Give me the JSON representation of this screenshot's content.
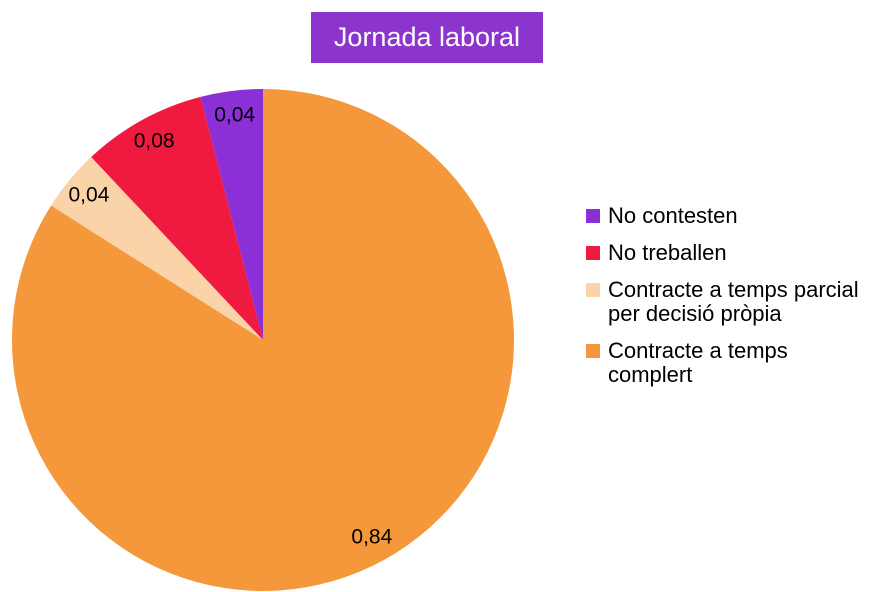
{
  "chart_data": {
    "type": "pie",
    "title": "Jornada laboral",
    "categories": [
      "Contracte a temps complert",
      "Contracte a temps parcial per decisió pròpia",
      "No treballen",
      "No contesten"
    ],
    "values": [
      0.84,
      0.04,
      0.08,
      0.04
    ],
    "value_labels": [
      "0,84",
      "0,04",
      "0,08",
      "0,04"
    ],
    "colors": [
      "#f4983b",
      "#fad3a8",
      "#f0193f",
      "#8b2fd6"
    ],
    "legend": "right"
  }
}
